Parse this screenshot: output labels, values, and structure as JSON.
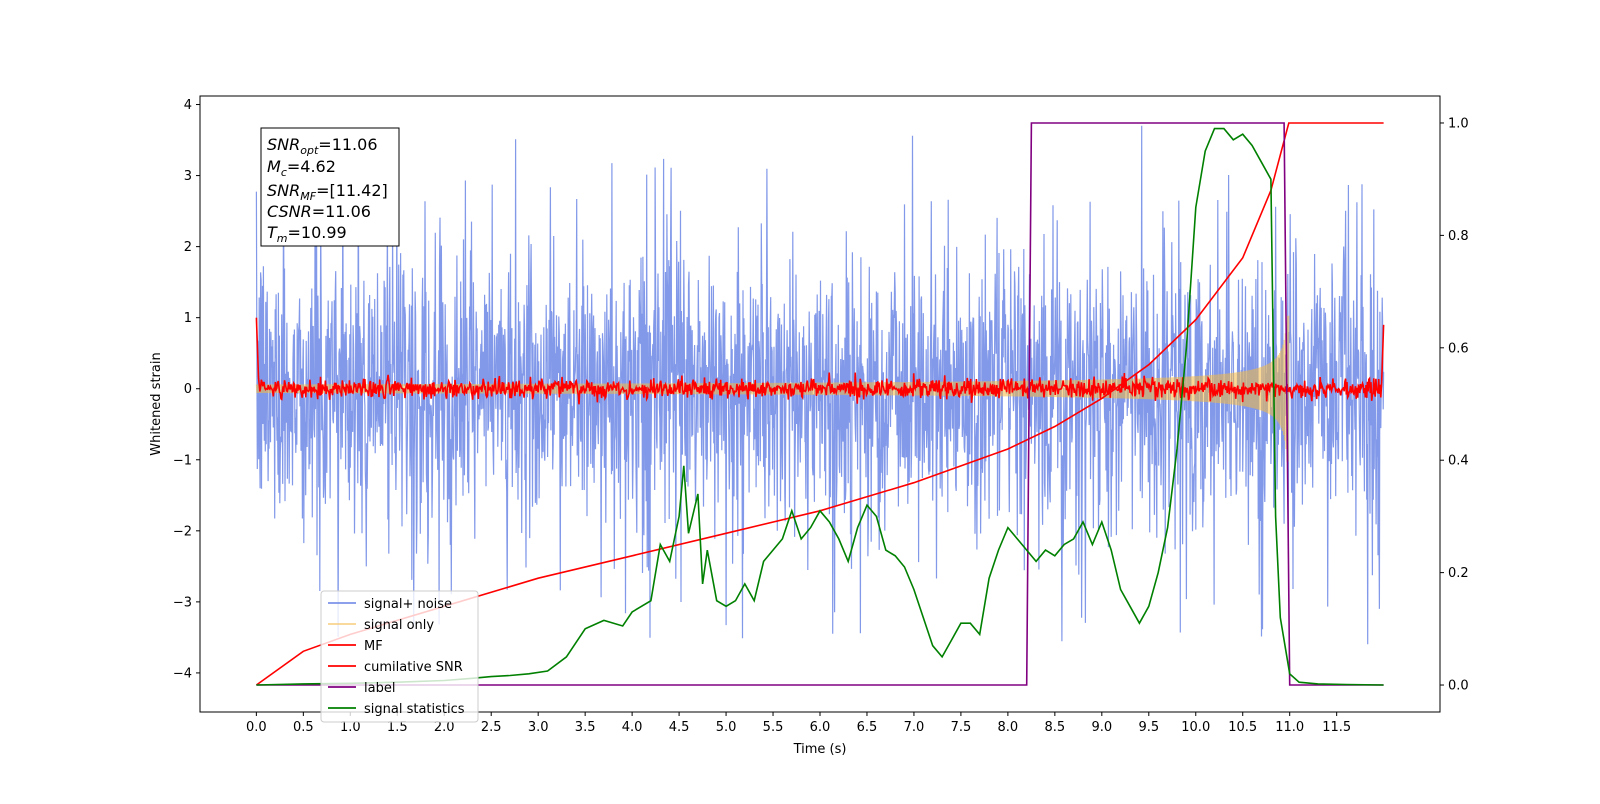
{
  "chart_data": {
    "type": "line",
    "xlabel": "Time (s)",
    "ylabel": "Whitened strain",
    "xlim": [
      -0.6,
      12.6
    ],
    "ylim": [
      -4.55,
      4.12
    ],
    "y2lim": [
      -0.048,
      1.048
    ],
    "xticks": [
      "0.0",
      "0.5",
      "1.0",
      "1.5",
      "2.0",
      "2.5",
      "3.0",
      "3.5",
      "4.0",
      "4.5",
      "5.0",
      "5.5",
      "6.0",
      "6.5",
      "7.0",
      "7.5",
      "8.0",
      "8.5",
      "9.0",
      "9.5",
      "10.0",
      "10.5",
      "11.0",
      "11.5"
    ],
    "xtick_values": [
      0,
      0.5,
      1,
      1.5,
      2,
      2.5,
      3,
      3.5,
      4,
      4.5,
      5,
      5.5,
      6,
      6.5,
      7,
      7.5,
      8,
      8.5,
      9,
      9.5,
      10,
      10.5,
      11,
      11.5
    ],
    "yticks": [
      "4",
      "3",
      "2",
      "1",
      "0",
      "−1",
      "−2",
      "−3",
      "−4"
    ],
    "ytick_values": [
      4,
      3,
      2,
      1,
      0,
      -1,
      -2,
      -3,
      -4
    ],
    "y2ticks": [
      "1.0",
      "0.8",
      "0.6",
      "0.4",
      "0.2",
      "0.0"
    ],
    "y2tick_values": [
      1.0,
      0.8,
      0.6,
      0.4,
      0.2,
      0.0
    ],
    "grid": false,
    "legend_position": "lower-left",
    "annotation": {
      "snr_opt": "=11.06",
      "mc": "=4.62",
      "snr_mf": "=[11.42]",
      "csnr": "=11.06",
      "tm": "=10.99"
    },
    "series": [
      {
        "name": "signal+ noise",
        "color": "#7b93e8",
        "axis": "left",
        "description_range": [
          -2.3,
          2.3
        ],
        "peak_max": 3.7,
        "peak_min": -4.15,
        "x_range": [
          0,
          12.0
        ]
      },
      {
        "name": "signal only",
        "color": "#f5b942",
        "axis": "left",
        "chirp_end": 10.99,
        "final_amplitude": 1.1
      },
      {
        "name": "MF",
        "color": "#ff0000",
        "axis": "left",
        "start_value": 1.0,
        "baseline": 0.0,
        "end_value": 0.9
      },
      {
        "name": "cumilative SNR",
        "color": "#ff0000",
        "axis": "right",
        "x": [
          0.0,
          0.5,
          1.0,
          2.0,
          3.0,
          4.0,
          5.0,
          6.0,
          7.0,
          8.0,
          8.5,
          9.0,
          9.5,
          10.0,
          10.5,
          10.8,
          10.99,
          11.0,
          12.0
        ],
        "y": [
          0.0,
          0.06,
          0.09,
          0.14,
          0.19,
          0.23,
          0.27,
          0.31,
          0.36,
          0.42,
          0.46,
          0.51,
          0.57,
          0.65,
          0.76,
          0.88,
          1.0,
          1.0,
          1.0
        ]
      },
      {
        "name": "label",
        "color": "#800080",
        "axis": "right",
        "x": [
          0.0,
          8.2,
          8.25,
          10.94,
          11.0,
          12.0
        ],
        "y": [
          0.0,
          0.0,
          1.0,
          1.0,
          0.0,
          0.0
        ]
      },
      {
        "name": "signal statistics",
        "color": "#008000",
        "axis": "right",
        "x": [
          0.0,
          0.5,
          1.0,
          1.5,
          2.0,
          2.3,
          2.5,
          2.7,
          2.9,
          3.1,
          3.3,
          3.5,
          3.7,
          3.9,
          4.0,
          4.1,
          4.2,
          4.3,
          4.4,
          4.5,
          4.55,
          4.6,
          4.7,
          4.75,
          4.8,
          4.9,
          5.0,
          5.1,
          5.2,
          5.3,
          5.4,
          5.5,
          5.6,
          5.7,
          5.8,
          5.9,
          6.0,
          6.1,
          6.2,
          6.3,
          6.4,
          6.5,
          6.6,
          6.7,
          6.8,
          6.9,
          7.0,
          7.1,
          7.2,
          7.3,
          7.4,
          7.5,
          7.6,
          7.7,
          7.8,
          7.9,
          8.0,
          8.1,
          8.2,
          8.3,
          8.4,
          8.5,
          8.6,
          8.7,
          8.8,
          8.9,
          9.0,
          9.1,
          9.2,
          9.3,
          9.4,
          9.5,
          9.6,
          9.7,
          9.8,
          9.9,
          10.0,
          10.1,
          10.2,
          10.3,
          10.4,
          10.5,
          10.6,
          10.7,
          10.8,
          10.85,
          10.9,
          11.0,
          11.1,
          11.3,
          11.6,
          12.0
        ],
        "y": [
          0.0,
          0.002,
          0.003,
          0.005,
          0.008,
          0.012,
          0.015,
          0.017,
          0.02,
          0.025,
          0.05,
          0.1,
          0.115,
          0.105,
          0.13,
          0.14,
          0.15,
          0.25,
          0.22,
          0.3,
          0.39,
          0.27,
          0.34,
          0.18,
          0.24,
          0.15,
          0.14,
          0.15,
          0.18,
          0.15,
          0.22,
          0.24,
          0.26,
          0.31,
          0.26,
          0.28,
          0.31,
          0.29,
          0.26,
          0.22,
          0.28,
          0.32,
          0.3,
          0.24,
          0.23,
          0.21,
          0.17,
          0.12,
          0.07,
          0.05,
          0.08,
          0.11,
          0.11,
          0.09,
          0.19,
          0.24,
          0.28,
          0.26,
          0.24,
          0.22,
          0.24,
          0.23,
          0.25,
          0.26,
          0.29,
          0.25,
          0.29,
          0.24,
          0.17,
          0.14,
          0.11,
          0.14,
          0.2,
          0.28,
          0.42,
          0.6,
          0.85,
          0.95,
          0.99,
          0.99,
          0.97,
          0.98,
          0.96,
          0.93,
          0.9,
          0.3,
          0.12,
          0.02,
          0.005,
          0.002,
          0.001,
          0.0
        ]
      }
    ]
  }
}
